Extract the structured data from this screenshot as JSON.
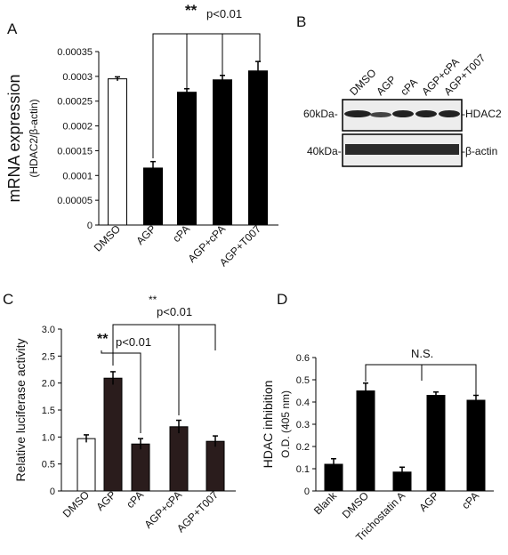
{
  "panels": {
    "A": {
      "letter": "A",
      "stars": "**",
      "sig": "p<0.01"
    },
    "B": {
      "letter": "B",
      "lanes": [
        "DMSO",
        "AGP",
        "cPA",
        "AGP+cPA",
        "AGP+T007"
      ],
      "bands": [
        {
          "marker": "60kDa-",
          "protein": "-HDAC2"
        },
        {
          "marker": "40kDa-",
          "protein": "-β-actin"
        }
      ]
    },
    "C": {
      "letter": "C",
      "sig_outer_stars": "**",
      "sig_outer": "p<0.01",
      "sig_inner_stars": "**",
      "sig_inner": "p<0.01"
    },
    "D": {
      "letter": "D",
      "ns": "N.S."
    }
  },
  "chart_data": [
    {
      "panel": "A",
      "type": "bar",
      "categories": [
        "DMSO",
        "AGP",
        "cPA",
        "AGP+cPA",
        "AGP+T007"
      ],
      "values": [
        0.000295,
        0.000115,
        0.000268,
        0.000293,
        0.000311
      ],
      "errors": [
        4e-06,
        1.3e-05,
        7e-06,
        9e-06,
        1.9e-05
      ],
      "bar_fill": [
        "#ffffff",
        "#000000",
        "#000000",
        "#000000",
        "#000000"
      ],
      "ylabel": "mRNA expression",
      "ylabel2": "(HDAC2/β-actin)",
      "ylim": [
        0,
        0.00035
      ],
      "yticks": [
        0,
        5e-05,
        0.0001,
        0.00015,
        0.0002,
        0.00025,
        0.0003,
        0.00035
      ],
      "ytick_labels": [
        "0",
        "0.00005",
        "0.0001",
        "0.00015",
        "0.0002",
        "0.00025",
        "0.0003",
        "0.00035"
      ]
    },
    {
      "panel": "C",
      "type": "bar",
      "categories": [
        "DMSO",
        "AGP",
        "cPA",
        "AGP+cPA",
        "AGP+T007"
      ],
      "values": [
        0.97,
        2.09,
        0.87,
        1.19,
        0.92
      ],
      "errors": [
        0.07,
        0.12,
        0.1,
        0.12,
        0.1
      ],
      "bar_fill": [
        "#ffffff",
        "#2a1c1c",
        "#2a1c1c",
        "#2a1c1c",
        "#2a1c1c"
      ],
      "ylabel": "Relative luciferase activity",
      "ylim": [
        0,
        3.0
      ],
      "yticks": [
        0,
        0.5,
        1.0,
        1.5,
        2.0,
        2.5,
        3.0
      ],
      "ytick_labels": [
        "0",
        "0.5",
        "1.0",
        "1.5",
        "2.0",
        "2.5",
        "3.0"
      ]
    },
    {
      "panel": "D",
      "type": "bar",
      "categories": [
        "Blank",
        "DMSO",
        "Trichostatin A",
        "AGP",
        "cPA"
      ],
      "values": [
        0.12,
        0.45,
        0.085,
        0.43,
        0.408
      ],
      "errors": [
        0.025,
        0.035,
        0.022,
        0.015,
        0.022
      ],
      "bar_fill": [
        "#000000",
        "#000000",
        "#000000",
        "#000000",
        "#000000"
      ],
      "ylabel": "HDAC inhibition",
      "ylabel2": "O.D. (405 nm)",
      "ylim": [
        0,
        0.6
      ],
      "yticks": [
        0,
        0.1,
        0.2,
        0.3,
        0.4,
        0.5,
        0.6
      ],
      "ytick_labels": [
        "0",
        "0.1",
        "0.2",
        "0.3",
        "0.4",
        "0.5",
        "0.6"
      ]
    }
  ]
}
